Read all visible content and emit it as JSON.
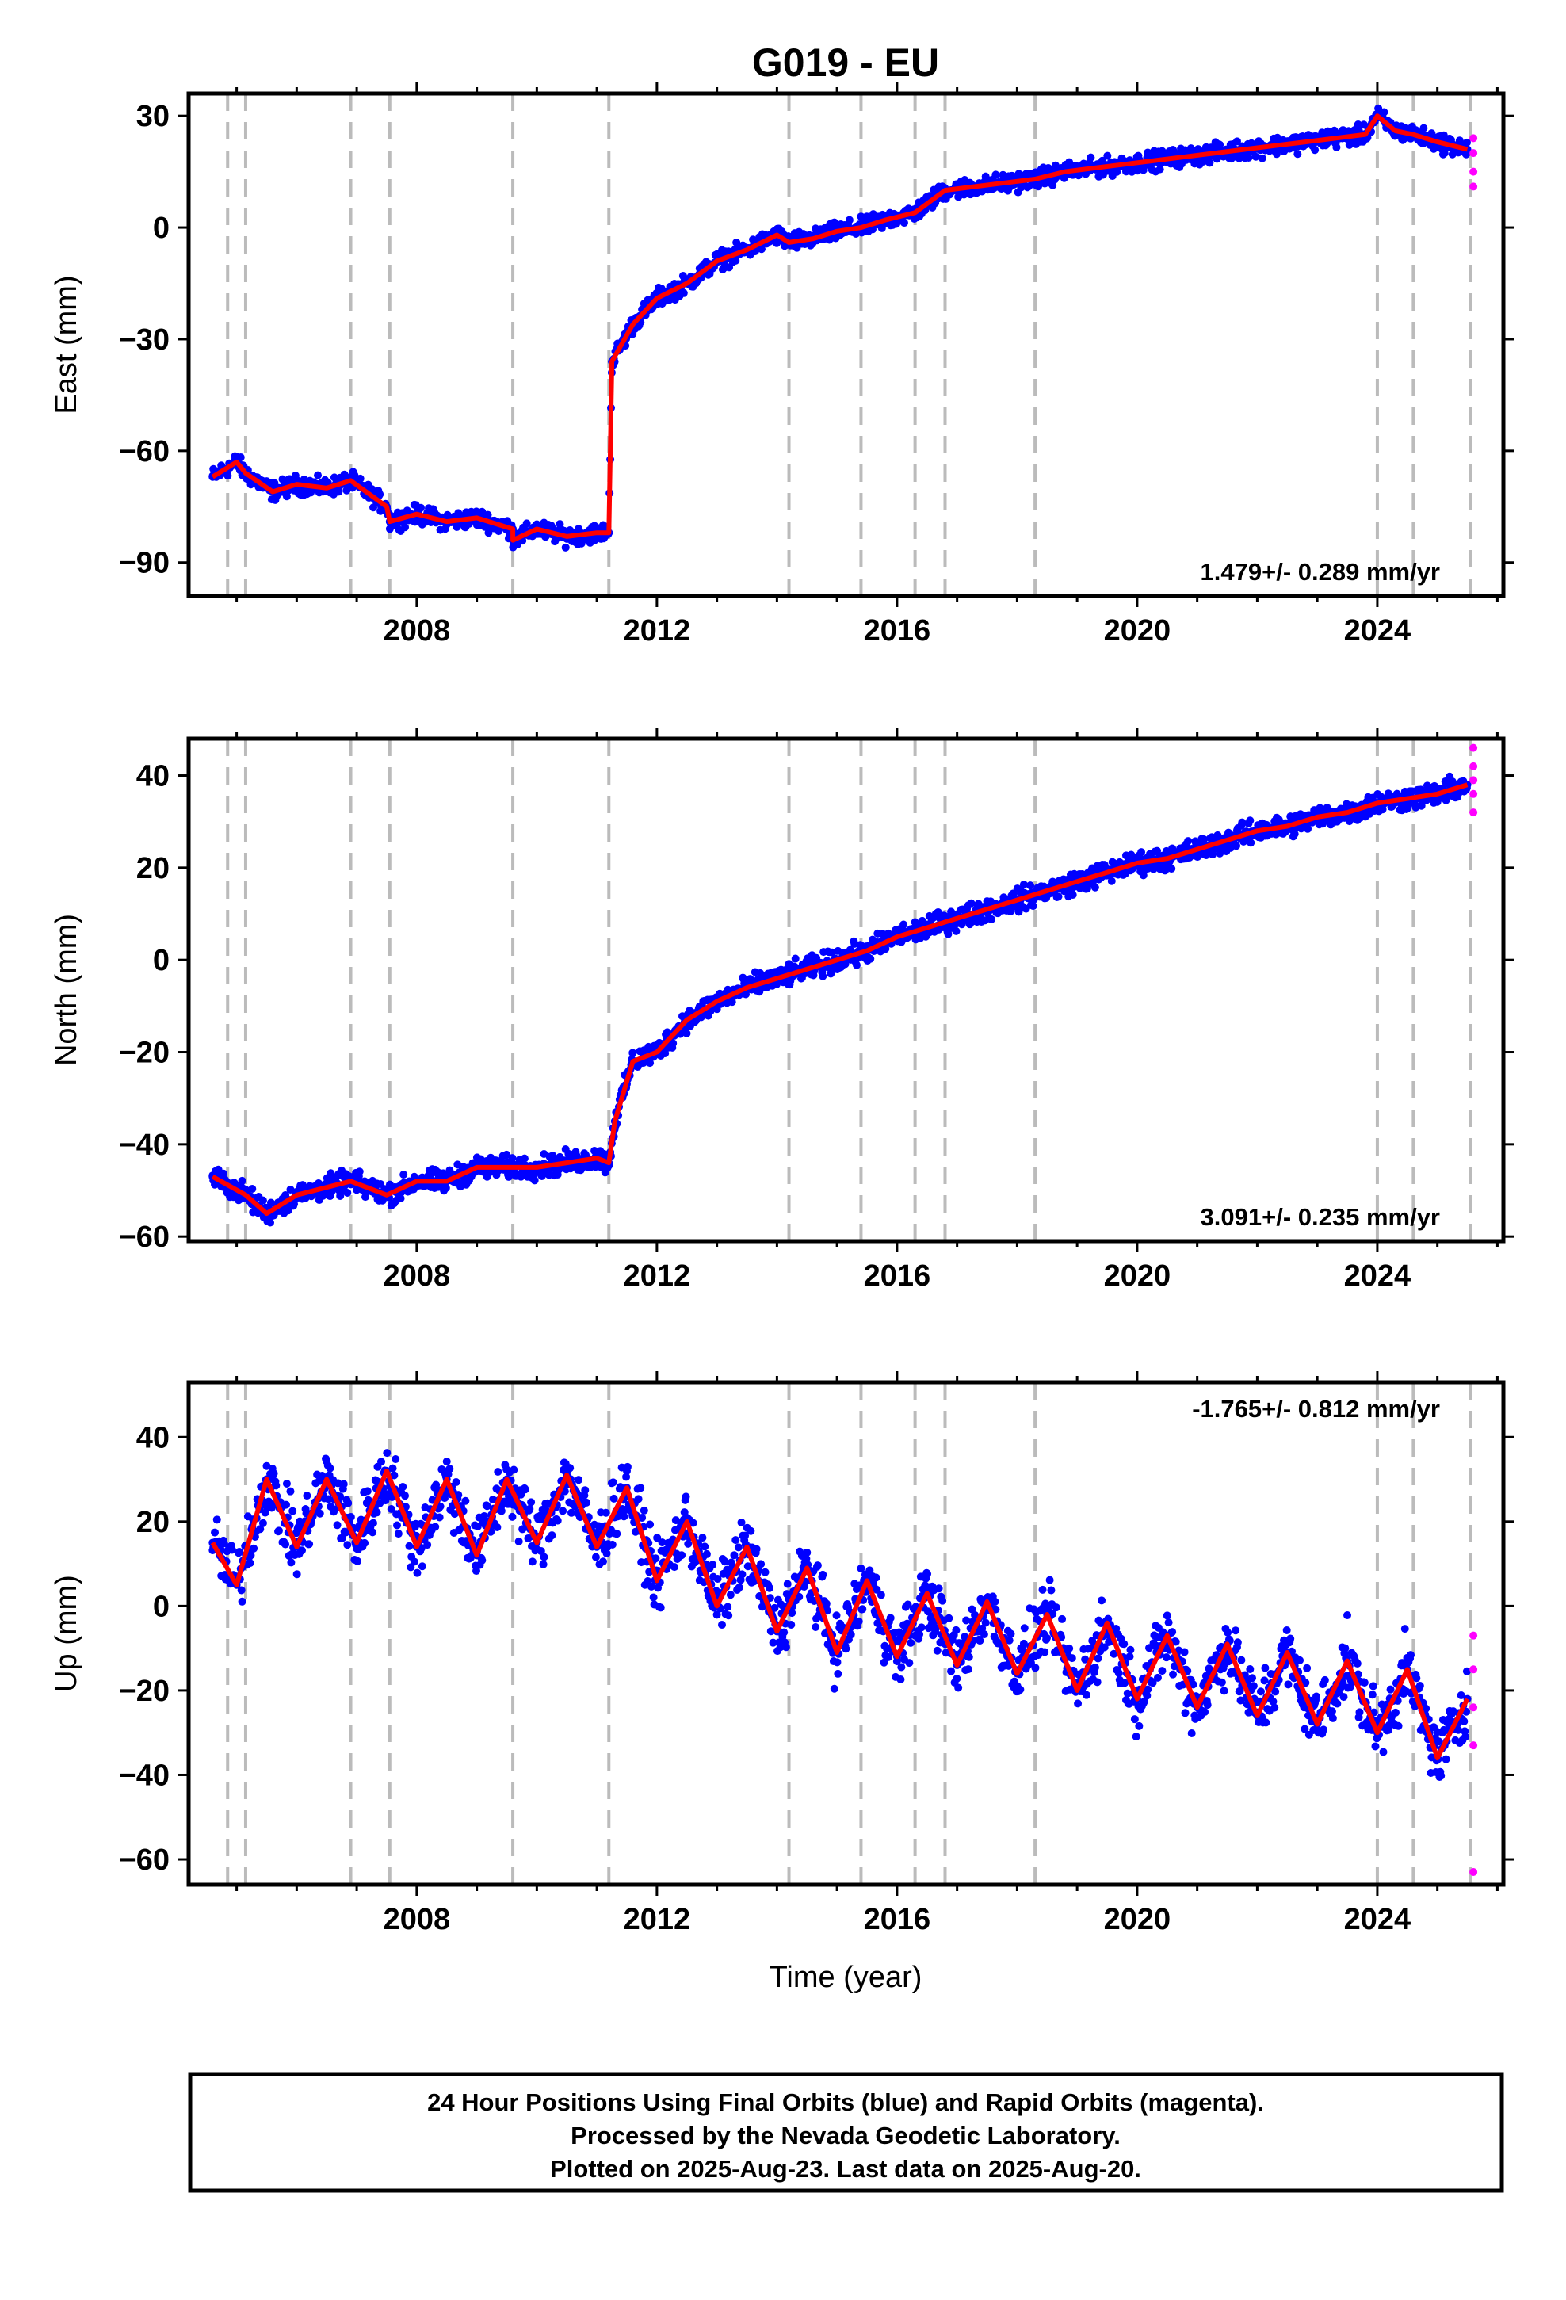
{
  "title": "G019 - EU",
  "x_axis_label": "Time (year)",
  "footer": {
    "line1": "24 Hour Positions Using Final Orbits (blue) and Rapid Orbits (magenta).",
    "line2": "Processed by the Nevada Geodetic Laboratory.",
    "line3": "Plotted on 2025-Aug-23. Last data on 2025-Aug-20."
  },
  "colors": {
    "final_orbits": "#0000ff",
    "rapid_orbits": "#ff00ff",
    "model": "#ff0000",
    "event_lines": "#bbbbbb"
  },
  "chart_data": [
    {
      "type": "scatter",
      "panel": "east",
      "ylabel": "East (mm)",
      "xlim": [
        2004.2,
        2026.1
      ],
      "ylim": [
        -99,
        36
      ],
      "x_ticks": [
        2008,
        2012,
        2016,
        2020,
        2024
      ],
      "y_ticks": [
        30,
        0,
        -30,
        -60,
        -90
      ],
      "rate_label": "1.479+/- 0.289 mm/yr",
      "rate_position": "bottom-right",
      "event_lines": [
        2004.85,
        2005.15,
        2006.9,
        2007.55,
        2009.6,
        2011.2,
        2014.2,
        2015.4,
        2016.3,
        2016.8,
        2018.3,
        2024.0,
        2024.6,
        2025.55
      ],
      "series": [
        {
          "name": "Final Orbits",
          "x": [
            2004.6,
            2005.0,
            2005.15,
            2005.6,
            2006.0,
            2006.5,
            2006.9,
            2007.5,
            2007.55,
            2008.0,
            2008.5,
            2009.0,
            2009.6,
            2009.6,
            2010.0,
            2010.5,
            2011.0,
            2011.2,
            2011.25,
            2011.6,
            2012.0,
            2012.5,
            2013.0,
            2013.5,
            2014.0,
            2014.2,
            2014.6,
            2015.0,
            2015.4,
            2015.8,
            2016.3,
            2016.8,
            2017.3,
            2017.8,
            2018.3,
            2018.8,
            2019.3,
            2019.8,
            2020.3,
            2020.8,
            2021.3,
            2021.8,
            2022.3,
            2022.8,
            2023.3,
            2023.8,
            2024.0,
            2024.3,
            2024.6,
            2025.0,
            2025.5
          ],
          "y": [
            -67,
            -63,
            -66,
            -71,
            -69,
            -70,
            -68,
            -75,
            -79,
            -77,
            -79,
            -78,
            -81,
            -84,
            -81,
            -83,
            -82,
            -82,
            -36,
            -26,
            -19,
            -15,
            -9,
            -6,
            -2,
            -4,
            -3,
            -1,
            0,
            2,
            4,
            10,
            11,
            12,
            13,
            15,
            16,
            17,
            18,
            19,
            20,
            21,
            22,
            23,
            24,
            25,
            30,
            26,
            25,
            23,
            21
          ]
        },
        {
          "name": "Rapid Orbits",
          "x": [
            2025.6,
            2025.6,
            2025.6,
            2025.6
          ],
          "y": [
            24,
            20,
            15,
            11
          ]
        }
      ]
    },
    {
      "type": "scatter",
      "panel": "north",
      "ylabel": "North (mm)",
      "xlim": [
        2004.2,
        2026.1
      ],
      "ylim": [
        -61,
        48
      ],
      "x_ticks": [
        2008,
        2012,
        2016,
        2020,
        2024
      ],
      "y_ticks": [
        40,
        20,
        0,
        -20,
        -40,
        -60
      ],
      "rate_label": "3.091+/- 0.235 mm/yr",
      "rate_position": "bottom-right",
      "event_lines": [
        2004.85,
        2005.15,
        2006.9,
        2007.55,
        2009.6,
        2011.2,
        2014.2,
        2015.4,
        2016.3,
        2016.8,
        2018.3,
        2024.0,
        2024.6,
        2025.55
      ],
      "series": [
        {
          "name": "Final Orbits",
          "x": [
            2004.6,
            2005.15,
            2005.5,
            2006.0,
            2006.9,
            2007.5,
            2008.0,
            2008.5,
            2009.0,
            2009.6,
            2010.0,
            2010.5,
            2011.0,
            2011.2,
            2011.3,
            2011.6,
            2012.0,
            2012.5,
            2013.0,
            2013.5,
            2014.0,
            2014.5,
            2015.0,
            2015.5,
            2016.0,
            2016.5,
            2017.0,
            2017.5,
            2018.0,
            2018.5,
            2019.0,
            2019.5,
            2020.0,
            2020.5,
            2021.0,
            2021.5,
            2022.0,
            2022.5,
            2023.0,
            2023.5,
            2024.0,
            2024.5,
            2025.0,
            2025.5
          ],
          "y": [
            -47,
            -51,
            -55,
            -51,
            -48,
            -51,
            -48,
            -48,
            -45,
            -45,
            -45,
            -44,
            -43,
            -44,
            -35,
            -22,
            -20,
            -13,
            -9,
            -6,
            -4,
            -2,
            0,
            2,
            5,
            7,
            9,
            11,
            13,
            15,
            17,
            19,
            21,
            22,
            24,
            26,
            28,
            29,
            31,
            32,
            34,
            35,
            36,
            38
          ]
        },
        {
          "name": "Rapid Orbits",
          "x": [
            2025.6,
            2025.6,
            2025.6,
            2025.6,
            2025.6
          ],
          "y": [
            46,
            42,
            39,
            36,
            32
          ]
        }
      ]
    },
    {
      "type": "scatter",
      "panel": "up",
      "ylabel": "Up (mm)",
      "xlim": [
        2004.2,
        2026.1
      ],
      "ylim": [
        -66,
        53
      ],
      "x_ticks": [
        2008,
        2012,
        2016,
        2020,
        2024
      ],
      "y_ticks": [
        40,
        20,
        0,
        -20,
        -40,
        -60
      ],
      "rate_label": "-1.765+/- 0.812 mm/yr",
      "rate_position": "top-right",
      "event_lines": [
        2004.85,
        2005.15,
        2006.9,
        2007.55,
        2009.6,
        2011.2,
        2014.2,
        2015.4,
        2016.3,
        2016.8,
        2018.3,
        2024.0,
        2024.6,
        2025.55
      ],
      "series": [
        {
          "name": "Final Orbits",
          "x": [
            2004.6,
            2005.0,
            2005.5,
            2006.0,
            2006.5,
            2007.0,
            2007.5,
            2008.0,
            2008.5,
            2009.0,
            2009.5,
            2010.0,
            2010.5,
            2011.0,
            2011.5,
            2012.0,
            2012.5,
            2013.0,
            2013.5,
            2014.0,
            2014.5,
            2015.0,
            2015.5,
            2016.0,
            2016.5,
            2017.0,
            2017.5,
            2018.0,
            2018.5,
            2019.0,
            2019.5,
            2020.0,
            2020.5,
            2021.0,
            2021.5,
            2022.0,
            2022.5,
            2023.0,
            2023.5,
            2024.0,
            2024.5,
            2025.0,
            2025.5
          ],
          "y": [
            15,
            5,
            30,
            14,
            30,
            15,
            32,
            14,
            30,
            12,
            30,
            15,
            31,
            14,
            28,
            6,
            20,
            0,
            14,
            -6,
            9,
            -11,
            6,
            -12,
            3,
            -14,
            1,
            -16,
            -2,
            -20,
            -4,
            -22,
            -7,
            -24,
            -9,
            -26,
            -11,
            -28,
            -13,
            -30,
            -15,
            -36,
            -22
          ]
        },
        {
          "name": "Rapid Orbits",
          "x": [
            2025.6,
            2025.6,
            2025.6,
            2025.6,
            2025.6
          ],
          "y": [
            -7,
            -15,
            -24,
            -33,
            -63
          ]
        }
      ]
    }
  ]
}
